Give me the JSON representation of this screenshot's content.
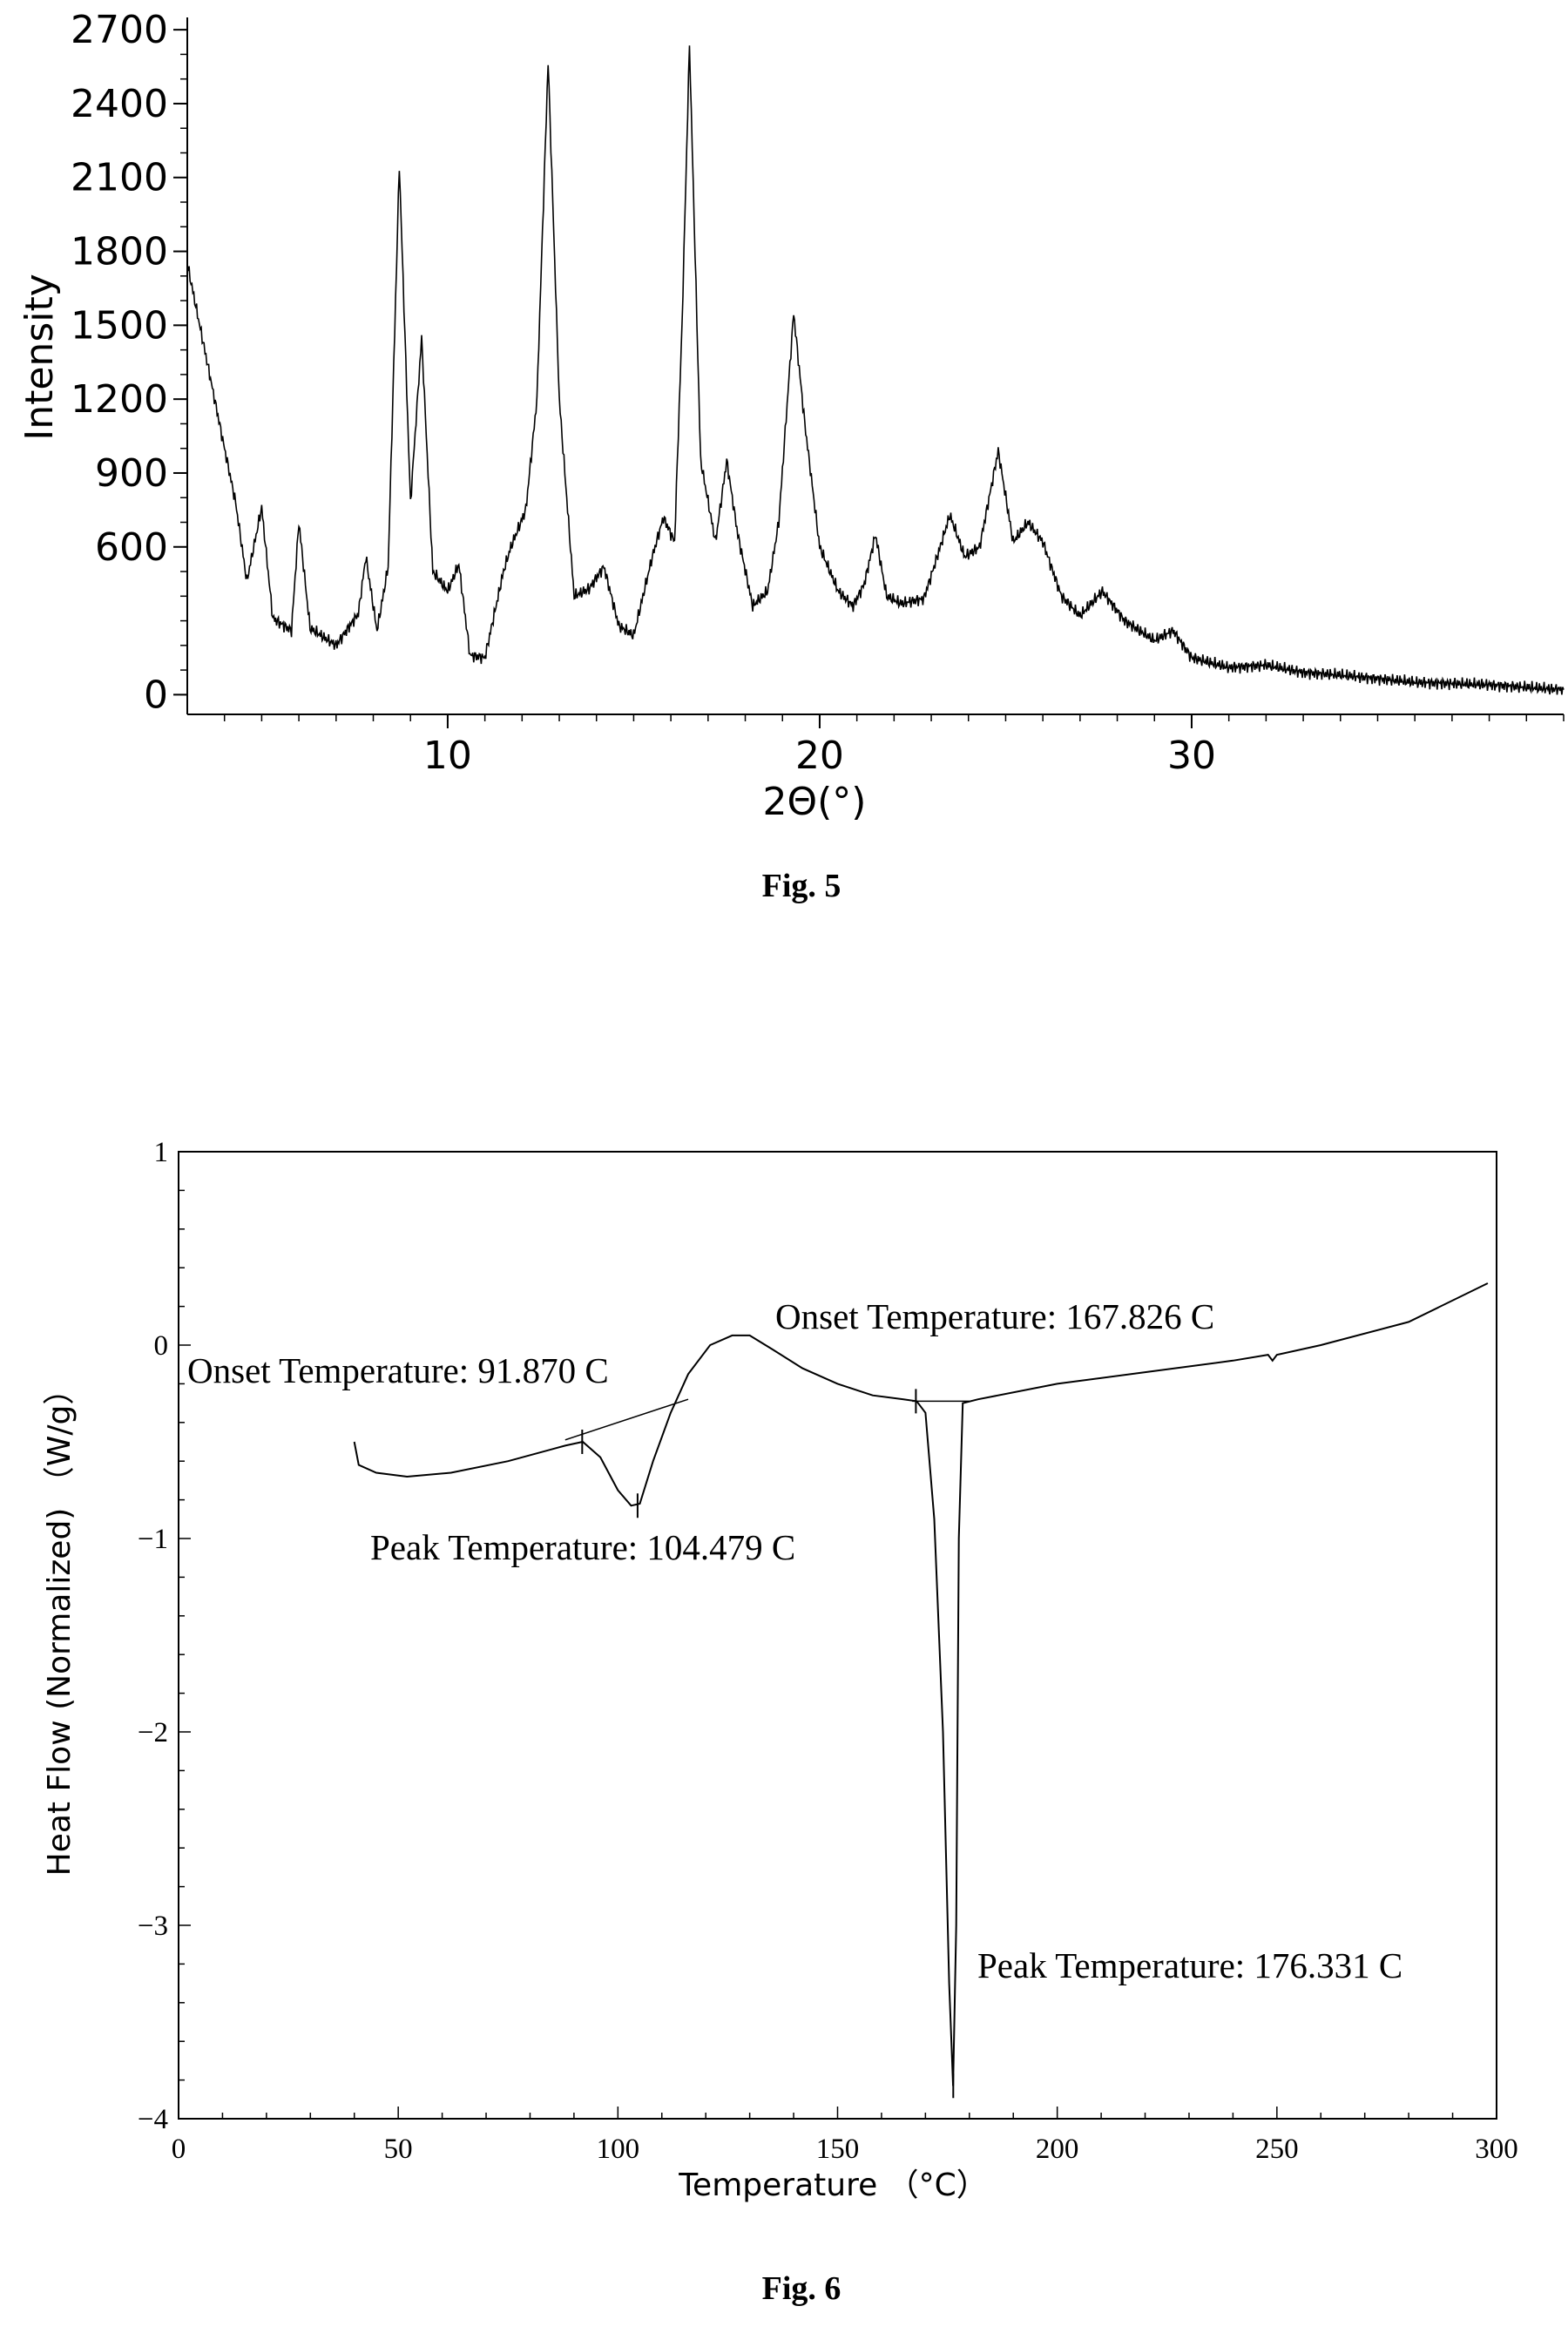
{
  "chart_data": [
    {
      "type": "line",
      "caption": "Fig. 5",
      "xlabel": "2Θ(°)",
      "ylabel": "Intensity",
      "xlim": [
        3,
        40
      ],
      "ylim": [
        -80,
        2750
      ],
      "x_ticks": [
        10,
        20,
        30
      ],
      "y_ticks": [
        0,
        600,
        900,
        1200,
        1500,
        1800,
        2100,
        2400,
        2700
      ],
      "baseline": [
        [
          3,
          1750
        ],
        [
          3.6,
          1300
        ],
        [
          4,
          1000
        ],
        [
          4.3,
          780
        ],
        [
          4.6,
          460
        ],
        [
          5.0,
          760
        ],
        [
          5.3,
          310
        ],
        [
          5.8,
          260
        ],
        [
          6.0,
          700
        ],
        [
          6.3,
          270
        ],
        [
          7.0,
          200
        ],
        [
          7.6,
          330
        ],
        [
          7.8,
          560
        ],
        [
          8.1,
          260
        ],
        [
          8.4,
          520
        ],
        [
          8.7,
          2150
        ],
        [
          9.0,
          780
        ],
        [
          9.3,
          1450
        ],
        [
          9.6,
          500
        ],
        [
          10.0,
          420
        ],
        [
          10.3,
          530
        ],
        [
          10.6,
          160
        ],
        [
          11.0,
          150
        ],
        [
          11.5,
          500
        ],
        [
          11.7,
          600
        ],
        [
          12.1,
          750
        ],
        [
          12.4,
          1200
        ],
        [
          12.7,
          2570
        ],
        [
          13.0,
          1200
        ],
        [
          13.4,
          400
        ],
        [
          13.8,
          430
        ],
        [
          14.2,
          520
        ],
        [
          14.6,
          280
        ],
        [
          15.0,
          240
        ],
        [
          15.5,
          560
        ],
        [
          15.8,
          720
        ],
        [
          16.1,
          620
        ],
        [
          16.3,
          1500
        ],
        [
          16.5,
          2640
        ],
        [
          16.8,
          950
        ],
        [
          17.2,
          620
        ],
        [
          17.5,
          950
        ],
        [
          17.8,
          650
        ],
        [
          18.2,
          360
        ],
        [
          18.6,
          420
        ],
        [
          18.9,
          700
        ],
        [
          19.3,
          1550
        ],
        [
          19.6,
          1100
        ],
        [
          20.0,
          600
        ],
        [
          20.5,
          420
        ],
        [
          20.9,
          360
        ],
        [
          21.2,
          450
        ],
        [
          21.5,
          650
        ],
        [
          21.8,
          400
        ],
        [
          22.2,
          370
        ],
        [
          22.8,
          390
        ],
        [
          23.2,
          580
        ],
        [
          23.5,
          730
        ],
        [
          23.9,
          560
        ],
        [
          24.3,
          600
        ],
        [
          24.8,
          990
        ],
        [
          25.2,
          620
        ],
        [
          25.6,
          700
        ],
        [
          26.0,
          620
        ],
        [
          26.5,
          400
        ],
        [
          27.0,
          320
        ],
        [
          27.6,
          420
        ],
        [
          28.2,
          300
        ],
        [
          29.0,
          220
        ],
        [
          29.5,
          260
        ],
        [
          30.0,
          150
        ],
        [
          31.0,
          110
        ],
        [
          32.0,
          120
        ],
        [
          33.0,
          90
        ],
        [
          34.0,
          80
        ],
        [
          36.0,
          50
        ],
        [
          38.0,
          40
        ],
        [
          40.0,
          20
        ]
      ]
    },
    {
      "type": "line",
      "caption": "Fig. 6",
      "xlabel": "Temperature （°C）",
      "ylabel": "Heat Flow (Normalized) （W/g）",
      "xlim": [
        0,
        300
      ],
      "ylim": [
        -4,
        1
      ],
      "x_ticks": [
        0,
        50,
        100,
        150,
        200,
        250,
        300
      ],
      "y_ticks": [
        1,
        0,
        -1,
        -2,
        -3,
        -4
      ],
      "y_tick_labels": [
        "1",
        "0",
        "−1",
        "−2",
        "−3",
        "−4"
      ],
      "baseline": [
        [
          40,
          -0.5
        ],
        [
          41,
          -0.62
        ],
        [
          45,
          -0.66
        ],
        [
          52,
          -0.68
        ],
        [
          62,
          -0.66
        ],
        [
          75,
          -0.6
        ],
        [
          88,
          -0.52
        ],
        [
          92,
          -0.5
        ],
        [
          96,
          -0.58
        ],
        [
          100,
          -0.75
        ],
        [
          103,
          -0.83
        ],
        [
          105,
          -0.82
        ],
        [
          108,
          -0.6
        ],
        [
          112,
          -0.35
        ],
        [
          116,
          -0.15
        ],
        [
          121,
          0.0
        ],
        [
          126,
          0.05
        ],
        [
          130,
          0.05
        ],
        [
          135,
          -0.02
        ],
        [
          142,
          -0.12
        ],
        [
          150,
          -0.2
        ],
        [
          158,
          -0.26
        ],
        [
          165,
          -0.28
        ],
        [
          168,
          -0.29
        ],
        [
          170,
          -0.35
        ],
        [
          172,
          -0.9
        ],
        [
          174,
          -2.0
        ],
        [
          175.4,
          -3.3
        ],
        [
          176.3,
          -3.83
        ],
        [
          177,
          -3.0
        ],
        [
          177.6,
          -1.0
        ],
        [
          178.5,
          -0.3
        ],
        [
          182,
          -0.28
        ],
        [
          200,
          -0.2
        ],
        [
          220,
          -0.14
        ],
        [
          240,
          -0.08
        ],
        [
          248,
          -0.05
        ],
        [
          249,
          -0.08
        ],
        [
          250,
          -0.05
        ],
        [
          260,
          0.0
        ],
        [
          280,
          0.12
        ],
        [
          298,
          0.32
        ]
      ],
      "tangent_1": [
        [
          88,
          -0.49
        ],
        [
          116,
          -0.28
        ]
      ],
      "tangent_2": [
        [
          167,
          -0.29
        ],
        [
          180,
          -0.29
        ]
      ],
      "annotations": [
        {
          "text": "Onset Temperature: 91.870 C",
          "x": 91.87,
          "y": -0.5
        },
        {
          "text": "Peak Temperature: 104.479 C",
          "x": 104.479,
          "y": -0.83
        },
        {
          "text": "Onset Temperature: 167.826 C",
          "x": 167.826,
          "y": -0.29
        },
        {
          "text": "Peak Temperature: 176.331 C",
          "x": 176.331,
          "y": -3.83
        }
      ]
    }
  ]
}
